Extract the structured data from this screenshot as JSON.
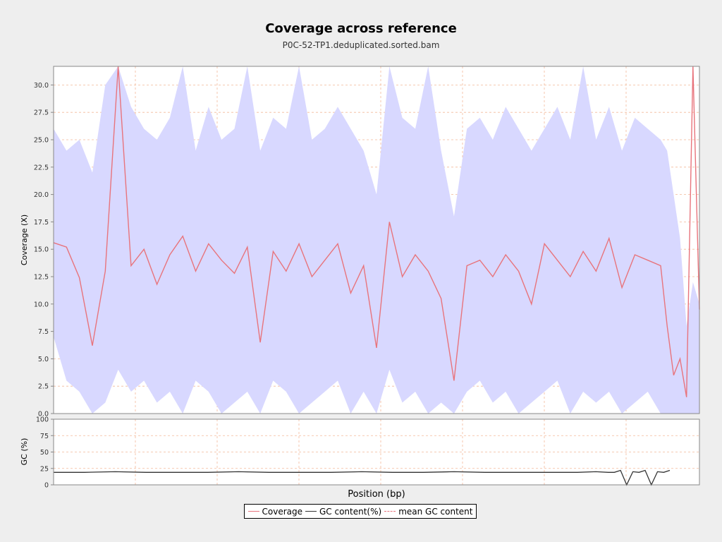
{
  "title": "Coverage across reference",
  "subtitle": "P0C-52-TP1.deduplicated.sorted.bam",
  "colors": {
    "coverage_line": "#e8747c",
    "deviation_band": "#d8d8ff",
    "gc_line": "#333333",
    "grid": "#f2b999",
    "background": "#eeeeee",
    "plot_bg": "#ffffff"
  },
  "legend": {
    "coverage": "Coverage",
    "gc": "GC content(%)",
    "mean_gc": "mean GC content"
  },
  "chart_data": [
    {
      "type": "area",
      "name": "coverage-panel",
      "ylabel": "Coverage (X)",
      "ylim": [
        0,
        31.7
      ],
      "yticks": [
        "0.0",
        "2.5",
        "5.0",
        "7.5",
        "10.0",
        "12.5",
        "15.0",
        "17.5",
        "20.0",
        "22.5",
        "25.0",
        "27.5",
        "30.0"
      ],
      "ytick_values": [
        0,
        2.5,
        5,
        7.5,
        10,
        12.5,
        15,
        17.5,
        20,
        22.5,
        25,
        27.5,
        30
      ],
      "grid": true,
      "x": [
        0,
        2,
        4,
        6,
        8,
        10,
        12,
        14,
        16,
        18,
        20,
        22,
        24,
        26,
        28,
        30,
        32,
        34,
        36,
        38,
        40,
        42,
        44,
        46,
        48,
        50,
        52,
        54,
        56,
        58,
        60,
        62,
        64,
        66,
        68,
        70,
        72,
        74,
        76,
        78,
        80,
        82,
        84,
        86,
        88,
        90,
        92,
        94,
        95,
        96,
        97,
        98,
        99,
        100
      ],
      "series": [
        {
          "name": "Coverage",
          "values": [
            15.6,
            15.2,
            12.4,
            6.2,
            13.0,
            31.7,
            13.5,
            15.0,
            11.8,
            14.5,
            16.2,
            13.0,
            15.5,
            14.0,
            12.8,
            15.2,
            6.5,
            14.8,
            13.0,
            15.5,
            12.5,
            14.0,
            15.5,
            11.0,
            13.5,
            6.0,
            17.5,
            12.5,
            14.5,
            13.0,
            10.5,
            3.0,
            13.5,
            14.0,
            12.5,
            14.5,
            13.0,
            10.0,
            15.5,
            14.0,
            12.5,
            14.8,
            13.0,
            16.0,
            11.5,
            14.5,
            14.0,
            13.5,
            8.0,
            3.5,
            5.0,
            1.5,
            31.7,
            9.5
          ]
        },
        {
          "name": "band-upper",
          "values": [
            26.0,
            24.0,
            25.0,
            22.0,
            30.0,
            31.7,
            28.0,
            26.0,
            25.0,
            27.0,
            31.7,
            24.0,
            28.0,
            25.0,
            26.0,
            31.7,
            24.0,
            27.0,
            26.0,
            31.7,
            25.0,
            26.0,
            28.0,
            26.0,
            24.0,
            20.0,
            31.7,
            27.0,
            26.0,
            31.7,
            24.0,
            18.0,
            26.0,
            27.0,
            25.0,
            28.0,
            26.0,
            24.0,
            26.0,
            28.0,
            25.0,
            31.7,
            25.0,
            28.0,
            24.0,
            27.0,
            26.0,
            25.0,
            24.0,
            20.0,
            16.0,
            8.0,
            12.0,
            10.0
          ]
        },
        {
          "name": "band-lower",
          "values": [
            7.0,
            3.0,
            2.0,
            0.0,
            1.0,
            4.0,
            2.0,
            3.0,
            1.0,
            2.0,
            0.0,
            3.0,
            2.0,
            0.0,
            1.0,
            2.0,
            0.0,
            3.0,
            2.0,
            0.0,
            1.0,
            2.0,
            3.0,
            0.0,
            2.0,
            0.0,
            4.0,
            1.0,
            2.0,
            0.0,
            1.0,
            0.0,
            2.0,
            3.0,
            1.0,
            2.0,
            0.0,
            1.0,
            2.0,
            3.0,
            0.0,
            2.0,
            1.0,
            2.0,
            0.0,
            1.0,
            2.0,
            0.0,
            0.0,
            0.0,
            0.0,
            0.0,
            0.0,
            0.0
          ]
        }
      ]
    },
    {
      "type": "line",
      "name": "gc-panel",
      "ylabel": "GC (%)",
      "xlabel": "Position (bp)",
      "ylim": [
        0,
        100
      ],
      "yticks": [
        "0",
        "25",
        "50",
        "75",
        "100"
      ],
      "ytick_values": [
        0,
        25,
        50,
        75,
        100
      ],
      "grid": true,
      "x": [
        0,
        5,
        10,
        15,
        20,
        25,
        30,
        35,
        40,
        45,
        50,
        55,
        60,
        65,
        70,
        75,
        80,
        85,
        88,
        90,
        91,
        92,
        93,
        94,
        95,
        96,
        97,
        98,
        99,
        100
      ],
      "series": [
        {
          "name": "GC content(%)",
          "values": [
            19,
            19,
            20,
            19,
            19,
            19,
            20,
            19,
            19,
            19,
            20,
            19,
            19,
            20,
            19,
            19,
            19,
            19,
            20,
            19,
            19,
            22,
            0,
            20,
            19,
            22,
            0,
            20,
            19,
            22
          ]
        }
      ]
    }
  ]
}
